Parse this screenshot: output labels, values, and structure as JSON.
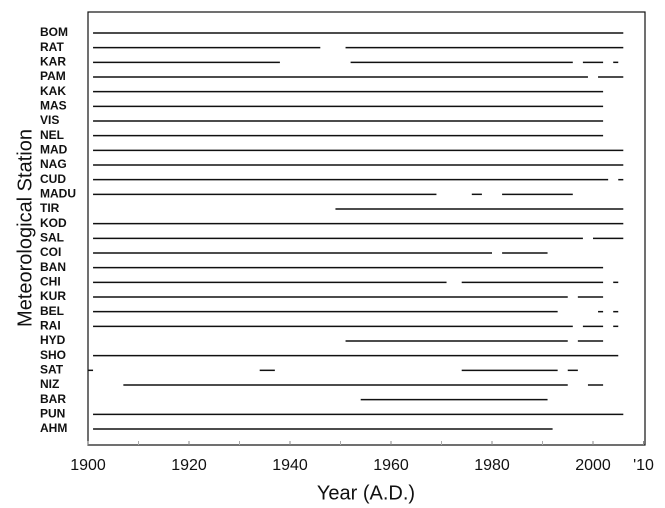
{
  "chart_data": {
    "type": "timeline",
    "xlabel": "Year (A.D.)",
    "ylabel": "Meteorological Station",
    "xlim": [
      1900,
      2010
    ],
    "xticks": [
      1900,
      1920,
      1940,
      1960,
      1980,
      2000,
      {
        "value": 2010,
        "label": "'10"
      }
    ],
    "minor_xticks": [
      1910,
      1930,
      1950,
      1970,
      1990
    ],
    "color": "#111111",
    "series": [
      {
        "name": "BOM",
        "segments": [
          [
            1901,
            2006
          ]
        ]
      },
      {
        "name": "RAT",
        "segments": [
          [
            1901,
            1946
          ],
          [
            1951,
            2006
          ]
        ]
      },
      {
        "name": "KAR",
        "segments": [
          [
            1901,
            1938
          ],
          [
            1952,
            1996
          ],
          [
            1998,
            2002
          ],
          [
            2004,
            2005
          ]
        ]
      },
      {
        "name": "PAM",
        "segments": [
          [
            1901,
            1999
          ],
          [
            2001,
            2006
          ]
        ]
      },
      {
        "name": "KAK",
        "segments": [
          [
            1901,
            2002
          ]
        ]
      },
      {
        "name": "MAS",
        "segments": [
          [
            1901,
            2002
          ]
        ]
      },
      {
        "name": "VIS",
        "segments": [
          [
            1901,
            2002
          ]
        ]
      },
      {
        "name": "NEL",
        "segments": [
          [
            1901,
            2002
          ]
        ]
      },
      {
        "name": "MAD",
        "segments": [
          [
            1901,
            2006
          ]
        ]
      },
      {
        "name": "NAG",
        "segments": [
          [
            1901,
            2006
          ]
        ]
      },
      {
        "name": "CUD",
        "segments": [
          [
            1901,
            2003
          ],
          [
            2005,
            2006
          ]
        ]
      },
      {
        "name": "MADU",
        "segments": [
          [
            1901,
            1969
          ],
          [
            1976,
            1978
          ],
          [
            1982,
            1996
          ]
        ]
      },
      {
        "name": "TIR",
        "segments": [
          [
            1949,
            2006
          ]
        ]
      },
      {
        "name": "KOD",
        "segments": [
          [
            1901,
            2006
          ]
        ]
      },
      {
        "name": "SAL",
        "segments": [
          [
            1901,
            1998
          ],
          [
            2000,
            2006
          ]
        ]
      },
      {
        "name": "COI",
        "segments": [
          [
            1901,
            1980
          ],
          [
            1982,
            1991
          ]
        ]
      },
      {
        "name": "BAN",
        "segments": [
          [
            1901,
            2002
          ]
        ]
      },
      {
        "name": "CHI",
        "segments": [
          [
            1901,
            1971
          ],
          [
            1974,
            2002
          ],
          [
            2004,
            2005
          ]
        ]
      },
      {
        "name": "KUR",
        "segments": [
          [
            1901,
            1995
          ],
          [
            1997,
            2002
          ]
        ]
      },
      {
        "name": "BEL",
        "segments": [
          [
            1901,
            1993
          ],
          [
            2001,
            2002
          ],
          [
            2004,
            2005
          ]
        ]
      },
      {
        "name": "RAI",
        "segments": [
          [
            1901,
            1996
          ],
          [
            1998,
            2002
          ],
          [
            2004,
            2005
          ]
        ]
      },
      {
        "name": "HYD",
        "segments": [
          [
            1951,
            1995
          ],
          [
            1997,
            2002
          ]
        ]
      },
      {
        "name": "SHO",
        "segments": [
          [
            1901,
            2005
          ]
        ]
      },
      {
        "name": "SAT",
        "segments": [
          [
            1900,
            1901
          ],
          [
            1934,
            1937
          ],
          [
            1974,
            1993
          ],
          [
            1995,
            1997
          ]
        ]
      },
      {
        "name": "NIZ",
        "segments": [
          [
            1907,
            1995
          ],
          [
            1999,
            2002
          ]
        ]
      },
      {
        "name": "BAR",
        "segments": [
          [
            1954,
            1991
          ]
        ]
      },
      {
        "name": "PUN",
        "segments": [
          [
            1901,
            2006
          ]
        ]
      },
      {
        "name": "AHM",
        "segments": [
          [
            1901,
            1992
          ]
        ]
      }
    ]
  }
}
